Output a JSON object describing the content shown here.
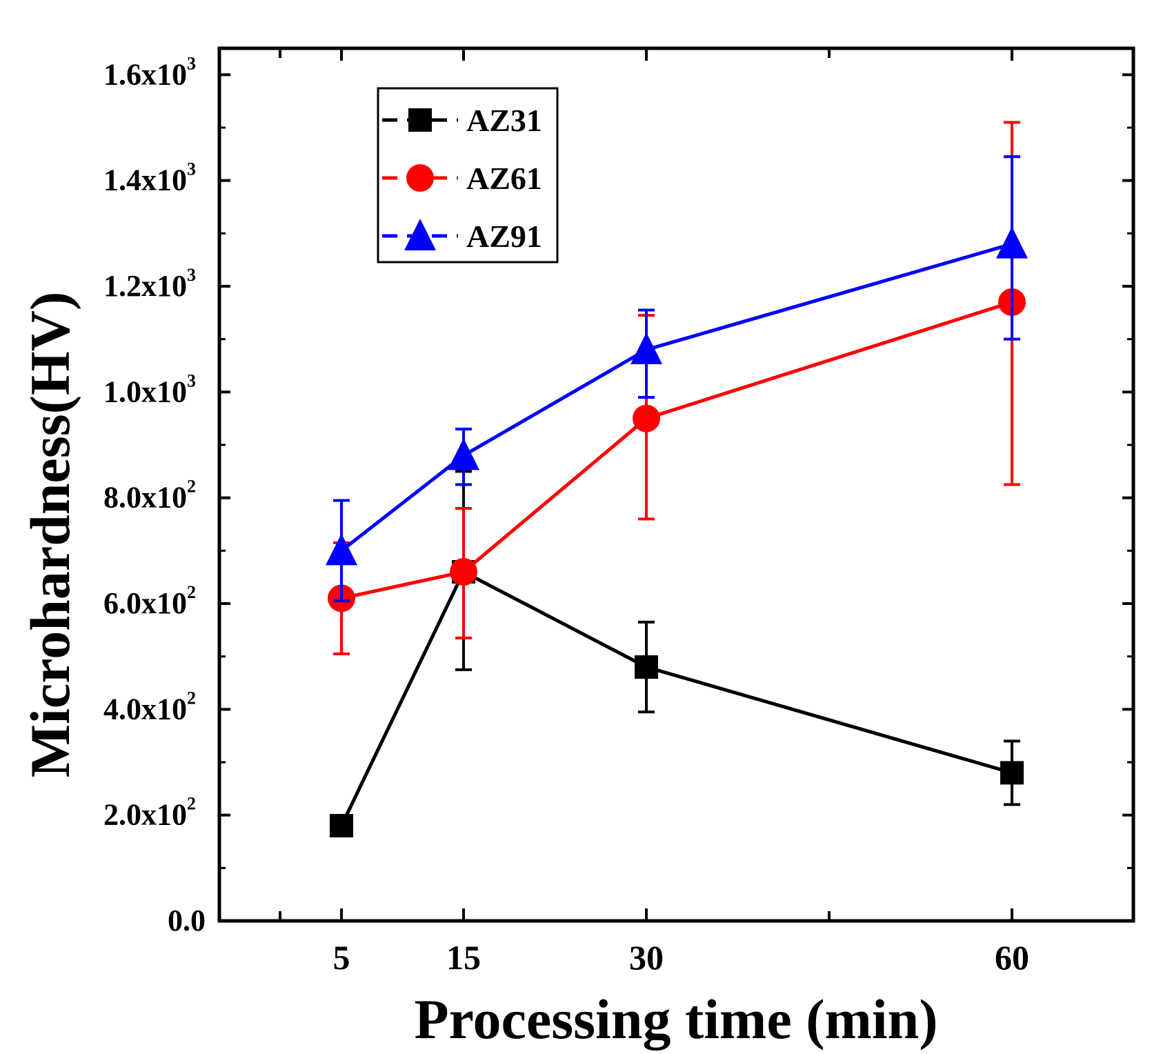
{
  "chart_data": {
    "type": "line",
    "title": "",
    "xlabel": "Processing time (min)",
    "ylabel": "Microhardness(HV)",
    "categories": [
      "5",
      "15",
      "30",
      "60"
    ],
    "x": [
      5,
      15,
      30,
      60
    ],
    "y_tick_labels": [
      {
        "mantissa": "0.0",
        "exp": ""
      },
      {
        "mantissa": "2.0x10",
        "exp": "2"
      },
      {
        "mantissa": "4.0x10",
        "exp": "2"
      },
      {
        "mantissa": "6.0x10",
        "exp": "2"
      },
      {
        "mantissa": "8.0x10",
        "exp": "2"
      },
      {
        "mantissa": "1.0x10",
        "exp": "3"
      },
      {
        "mantissa": "1.2x10",
        "exp": "3"
      },
      {
        "mantissa": "1.4x10",
        "exp": "3"
      },
      {
        "mantissa": "1.6x10",
        "exp": "3"
      }
    ],
    "yticks": [
      0,
      200,
      400,
      600,
      800,
      1000,
      1200,
      1400,
      1600
    ],
    "ylim": [
      0,
      1650
    ],
    "legend_position": "top-left",
    "series": [
      {
        "name": "AZ31",
        "color": "#000000",
        "marker": "square",
        "values": [
          180,
          660,
          480,
          280
        ],
        "err_low": [
          180,
          475,
          395,
          220
        ],
        "err_high": [
          180,
          850,
          565,
          340
        ]
      },
      {
        "name": "AZ61",
        "color": "#ff0000",
        "marker": "circle",
        "values": [
          610,
          660,
          950,
          1170
        ],
        "err_low": [
          505,
          535,
          760,
          825
        ],
        "err_high": [
          715,
          780,
          1145,
          1510
        ]
      },
      {
        "name": "AZ91",
        "color": "#0000ff",
        "marker": "triangle",
        "values": [
          700,
          880,
          1080,
          1280
        ],
        "err_low": [
          605,
          825,
          990,
          1100
        ],
        "err_high": [
          795,
          930,
          1155,
          1445
        ]
      }
    ]
  }
}
